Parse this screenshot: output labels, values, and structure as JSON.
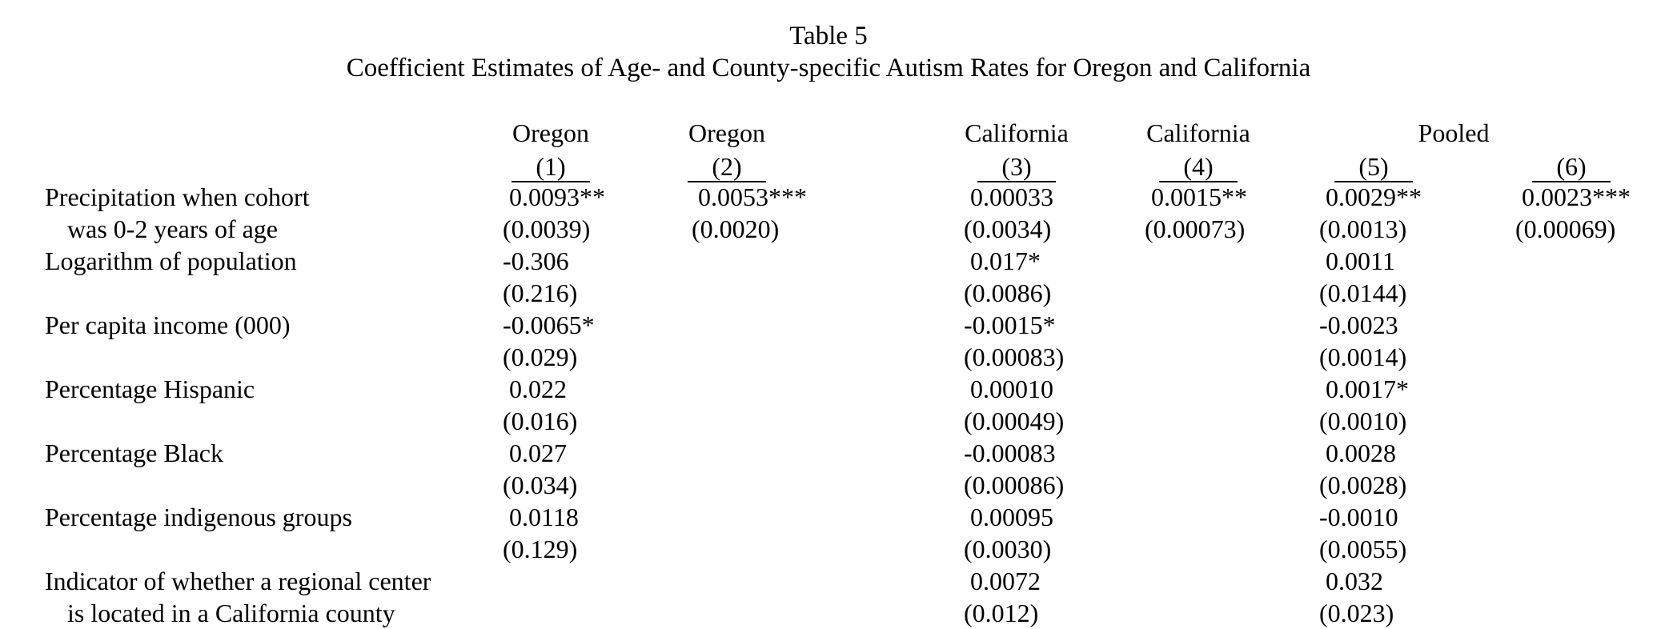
{
  "table": {
    "title": "Table 5",
    "subtitle": "Coefficient Estimates of Age- and County-specific Autism Rates for Oregon and California",
    "columns": [
      {
        "state": "Oregon",
        "number": "(1)"
      },
      {
        "state": "Oregon",
        "number": "(2)"
      },
      {
        "state": "California",
        "number": "(3)"
      },
      {
        "state": "California",
        "number": "(4)"
      },
      {
        "state": "",
        "number": "(5)"
      },
      {
        "state": "",
        "number": "(6)"
      }
    ],
    "group_label": "Pooled",
    "rows": [
      {
        "label": "Precipitation when cohort",
        "label2": "was 0-2 years of age",
        "coef": [
          "0.0093**",
          "0.0053***",
          "0.00033",
          "0.0015**",
          "0.0029**",
          "0.0023***"
        ],
        "se": [
          "(0.0039)",
          "(0.0020)",
          "(0.0034)",
          "(0.00073)",
          "(0.0013)",
          "(0.00069)"
        ]
      },
      {
        "label": "Logarithm of population",
        "label2": "",
        "coef": [
          "-0.306",
          "",
          "0.017*",
          "",
          "0.0011",
          ""
        ],
        "se": [
          "(0.216)",
          "",
          "(0.0086)",
          "",
          "(0.0144)",
          ""
        ]
      },
      {
        "label": "Per capita income (000)",
        "label2": "",
        "coef": [
          "-0.0065*",
          "",
          "-0.0015*",
          "",
          "-0.0023",
          ""
        ],
        "se": [
          "(0.029)",
          "",
          "(0.00083)",
          "",
          "(0.0014)",
          ""
        ]
      },
      {
        "label": "Percentage Hispanic",
        "label2": "",
        "coef": [
          "0.022",
          "",
          "0.00010",
          "",
          "0.0017*",
          ""
        ],
        "se": [
          "(0.016)",
          "",
          "(0.00049)",
          "",
          "(0.0010)",
          ""
        ]
      },
      {
        "label": "Percentage Black",
        "label2": "",
        "coef": [
          "0.027",
          "",
          "-0.00083",
          "",
          "0.0028",
          ""
        ],
        "se": [
          "(0.034)",
          "",
          "(0.00086)",
          "",
          "(0.0028)",
          ""
        ]
      },
      {
        "label": "Percentage indigenous groups",
        "label2": "",
        "coef": [
          "0.0118",
          "",
          "0.00095",
          "",
          "-0.0010",
          ""
        ],
        "se": [
          "(0.129)",
          "",
          "(0.0030)",
          "",
          "(0.0055)",
          ""
        ]
      },
      {
        "label": "Indicator of whether a regional center",
        "label2": "is located in a California county",
        "coef": [
          "",
          "",
          "0.0072",
          "",
          "0.032",
          ""
        ],
        "se": [
          "",
          "",
          "(0.012)",
          "",
          "(0.023)",
          ""
        ]
      }
    ]
  }
}
